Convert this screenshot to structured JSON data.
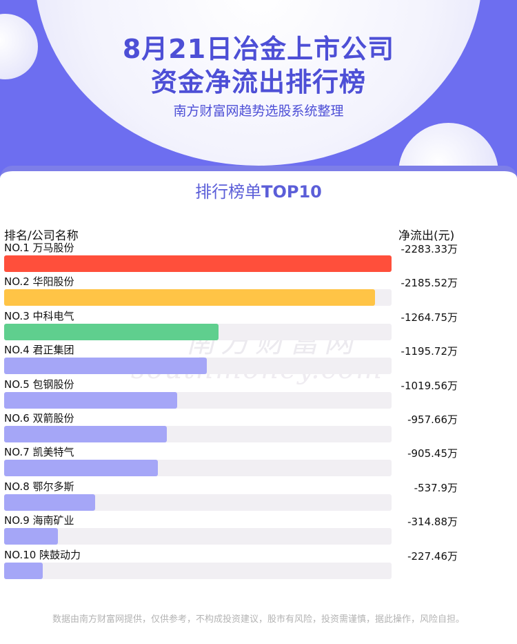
{
  "header": {
    "title_line1": "8月21日冶金上市公司",
    "title_line2": "资金净流出排行榜",
    "subtitle": "南方财富网趋势选股系统整理"
  },
  "card": {
    "title_prefix": "排行榜单",
    "title_bold": "TOP10"
  },
  "watermark": {
    "line1": "南方财富网",
    "line2": "southmoney.com"
  },
  "footer": {
    "disclaimer": "数据由南方财富网提供，仅供参考，不构成投资建议，股市有风险，投资需谨慎，据此操作，风险自担。"
  },
  "colors": {
    "header_bg": "#6d6ef0",
    "title": "#4d4fd6",
    "bar_rank1": "#ff4f3b",
    "bar_rank2": "#ffc446",
    "bar_rank3": "#5fcf8e",
    "bar_other": "#a5a6f7",
    "track": "#f1eff3"
  },
  "chart_data": {
    "type": "bar",
    "orientation": "horizontal",
    "xlabel": "排名/公司名称",
    "ylabel": "净流出(元)",
    "categories": [
      "NO.1 万马股份",
      "NO.2 华阳股份",
      "NO.3 中科电气",
      "NO.4 君正集团",
      "NO.5 包钢股份",
      "NO.6 双箭股份",
      "NO.7 凯美特气",
      "NO.8 鄂尔多斯",
      "NO.9 海南矿业",
      "NO.10 陕鼓动力"
    ],
    "values": [
      -2283.33,
      -2185.52,
      -1264.75,
      -1195.72,
      -1019.56,
      -957.66,
      -905.45,
      -537.9,
      -314.88,
      -227.46
    ],
    "value_labels": [
      "-2283.33万",
      "-2185.52万",
      "-1264.75万",
      "-1195.72万",
      "-1019.56万",
      "-957.66万",
      "-905.45万",
      "-537.9万",
      "-314.88万",
      "-227.46万"
    ],
    "unit": "万"
  }
}
